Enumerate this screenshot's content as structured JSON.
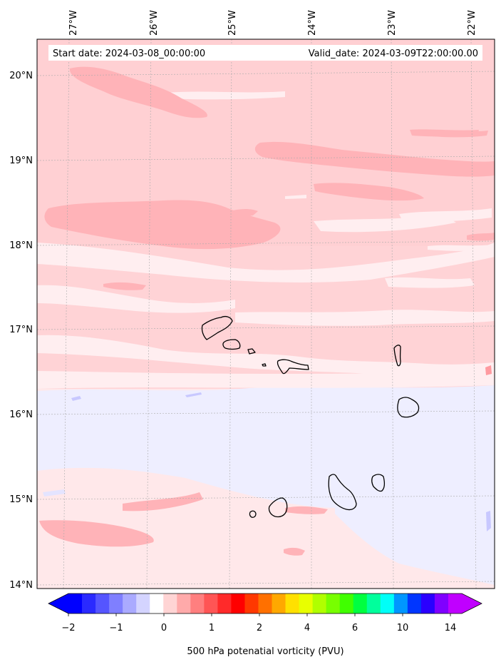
{
  "header": {
    "start_date": "Start date: 2024-03-08_00:00:00",
    "valid_date": "Valid_date: 2024-03-09T22:00:00.00"
  },
  "axes": {
    "lon_labels": [
      "27°W",
      "26°W",
      "25°W",
      "24°W",
      "23°W",
      "22°W"
    ],
    "lat_labels": [
      "20°N",
      "19°N",
      "18°N",
      "17°N",
      "16°N",
      "15°N",
      "14°N"
    ]
  },
  "colorbar": {
    "title": "500 hPa potenatial vorticity (PVU)",
    "tick_labels": [
      "−2",
      "−1",
      "0",
      "1",
      "2",
      "4",
      "6",
      "10",
      "14"
    ],
    "colors": [
      "#0000ff",
      "#2a2aff",
      "#5555ff",
      "#7f7fff",
      "#aaaaff",
      "#d4d4ff",
      "#ffffff",
      "#ffd4d4",
      "#ffaaaa",
      "#ff7f7f",
      "#ff5555",
      "#ff2a2a",
      "#ff0000",
      "#ff3800",
      "#ff7000",
      "#ffa800",
      "#ffe000",
      "#e8ff00",
      "#b0ff00",
      "#78ff00",
      "#40ff00",
      "#00ff40",
      "#00ff9c",
      "#00fff8",
      "#0096ff",
      "#0036ff",
      "#2a00ff",
      "#8000ff",
      "#c000ff"
    ]
  },
  "chart_data": {
    "type": "heatmap",
    "title": "",
    "xlabel": "",
    "ylabel": "",
    "variable": "500 hPa potenatial vorticity (PVU)",
    "x_range_lon": [
      -27.4,
      -21.8
    ],
    "y_range_lat": [
      13.95,
      20.4
    ],
    "colorbar_levels": [
      -2,
      -1,
      0,
      1,
      2,
      4,
      6,
      10,
      14
    ],
    "grid": true
  }
}
